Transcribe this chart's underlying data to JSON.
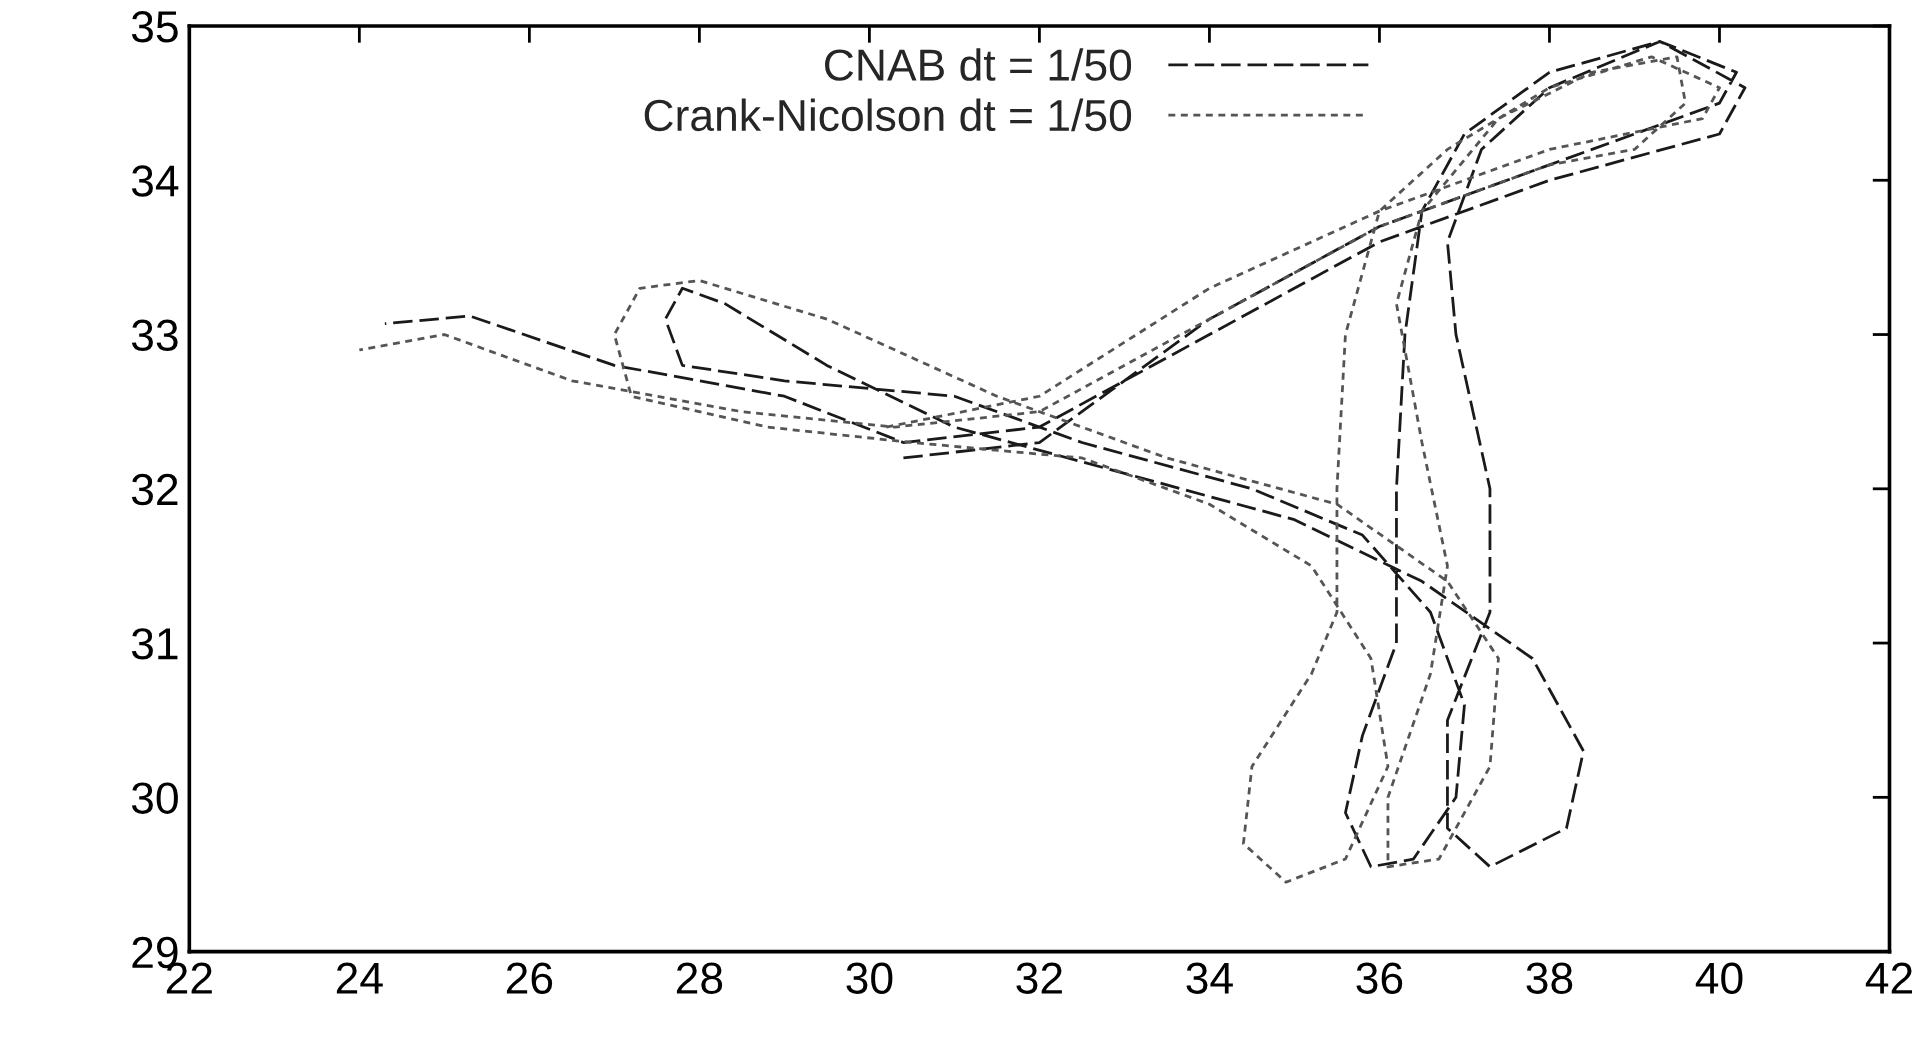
{
  "chart_data": {
    "type": "line",
    "xlim": [
      22,
      42
    ],
    "ylim": [
      29,
      35
    ],
    "xticks": [
      22,
      24,
      26,
      28,
      30,
      32,
      34,
      36,
      38,
      40,
      42
    ],
    "yticks": [
      29,
      30,
      31,
      32,
      33,
      34,
      35
    ],
    "grid": false,
    "legend": "top",
    "series": [
      {
        "name": "CNAB dt = 1/50",
        "color": "#1a1a1a",
        "line_style": "dashed",
        "x": [
          30.4,
          32,
          34,
          36,
          38,
          40,
          40.2,
          39.3,
          38,
          37,
          36.5,
          36.3,
          36.2,
          36.2,
          35.8,
          35.6,
          35.9,
          36.4,
          36.9,
          37,
          36.6,
          35.8,
          34.5,
          32.5,
          31,
          29,
          27.8,
          27.6,
          27.8,
          28.3,
          29.5,
          31,
          33,
          35,
          36.5,
          37.8,
          38.4,
          38.2,
          37.3,
          36.8,
          36.8,
          37.3,
          37.3,
          36.9,
          36.8,
          37.2,
          38,
          39.3,
          40.3,
          40,
          38,
          36,
          34,
          32,
          30.4,
          29,
          27,
          25.3,
          24.3
        ],
        "values": [
          32.2,
          32.3,
          33.1,
          33.7,
          34.1,
          34.5,
          34.7,
          34.9,
          34.7,
          34.3,
          33.8,
          33,
          32,
          31,
          30.4,
          29.9,
          29.55,
          29.6,
          30,
          30.6,
          31.2,
          31.7,
          32,
          32.3,
          32.6,
          32.7,
          32.8,
          33.1,
          33.3,
          33.2,
          32.8,
          32.4,
          32.1,
          31.8,
          31.4,
          30.9,
          30.3,
          29.8,
          29.55,
          29.8,
          30.5,
          31.2,
          32,
          33,
          33.6,
          34.2,
          34.6,
          34.9,
          34.6,
          34.3,
          34,
          33.6,
          33,
          32.4,
          32.3,
          32.6,
          32.8,
          33.12,
          33.07
        ]
      },
      {
        "name": "Crank-Nicolson dt = 1/50",
        "color": "#555555",
        "line_style": "dotted",
        "x": [
          30.2,
          32,
          34,
          36,
          38,
          39.8,
          40,
          39.2,
          38,
          36.8,
          36,
          35.6,
          35.5,
          35.5,
          35.2,
          34.5,
          34.4,
          34.9,
          35.6,
          36.1,
          35.9,
          35.2,
          34,
          32.5,
          30.5,
          28.8,
          27.2,
          27,
          27.3,
          28,
          29.5,
          31.5,
          33.5,
          35.5,
          36.8,
          37.4,
          37.3,
          36.7,
          36.1,
          36.1,
          36.6,
          36.8,
          36.5,
          36.2,
          36.5,
          37.4,
          38.5,
          39.5,
          39.6,
          39,
          38,
          36,
          34,
          32,
          30.3,
          28.5,
          26.5,
          25,
          24
        ],
        "values": [
          32.4,
          32.6,
          33.3,
          33.8,
          34.2,
          34.4,
          34.6,
          34.8,
          34.6,
          34.2,
          33.8,
          33,
          32,
          31.2,
          30.8,
          30.2,
          29.7,
          29.45,
          29.6,
          30.2,
          30.9,
          31.5,
          31.9,
          32.2,
          32.3,
          32.4,
          32.6,
          33,
          33.3,
          33.35,
          33.1,
          32.6,
          32.2,
          31.9,
          31.4,
          30.9,
          30.2,
          29.6,
          29.55,
          30,
          30.8,
          31.5,
          32.3,
          33.2,
          33.8,
          34.4,
          34.7,
          34.8,
          34.5,
          34.2,
          34.1,
          33.7,
          33.1,
          32.5,
          32.4,
          32.5,
          32.7,
          33,
          32.9
        ]
      }
    ]
  }
}
